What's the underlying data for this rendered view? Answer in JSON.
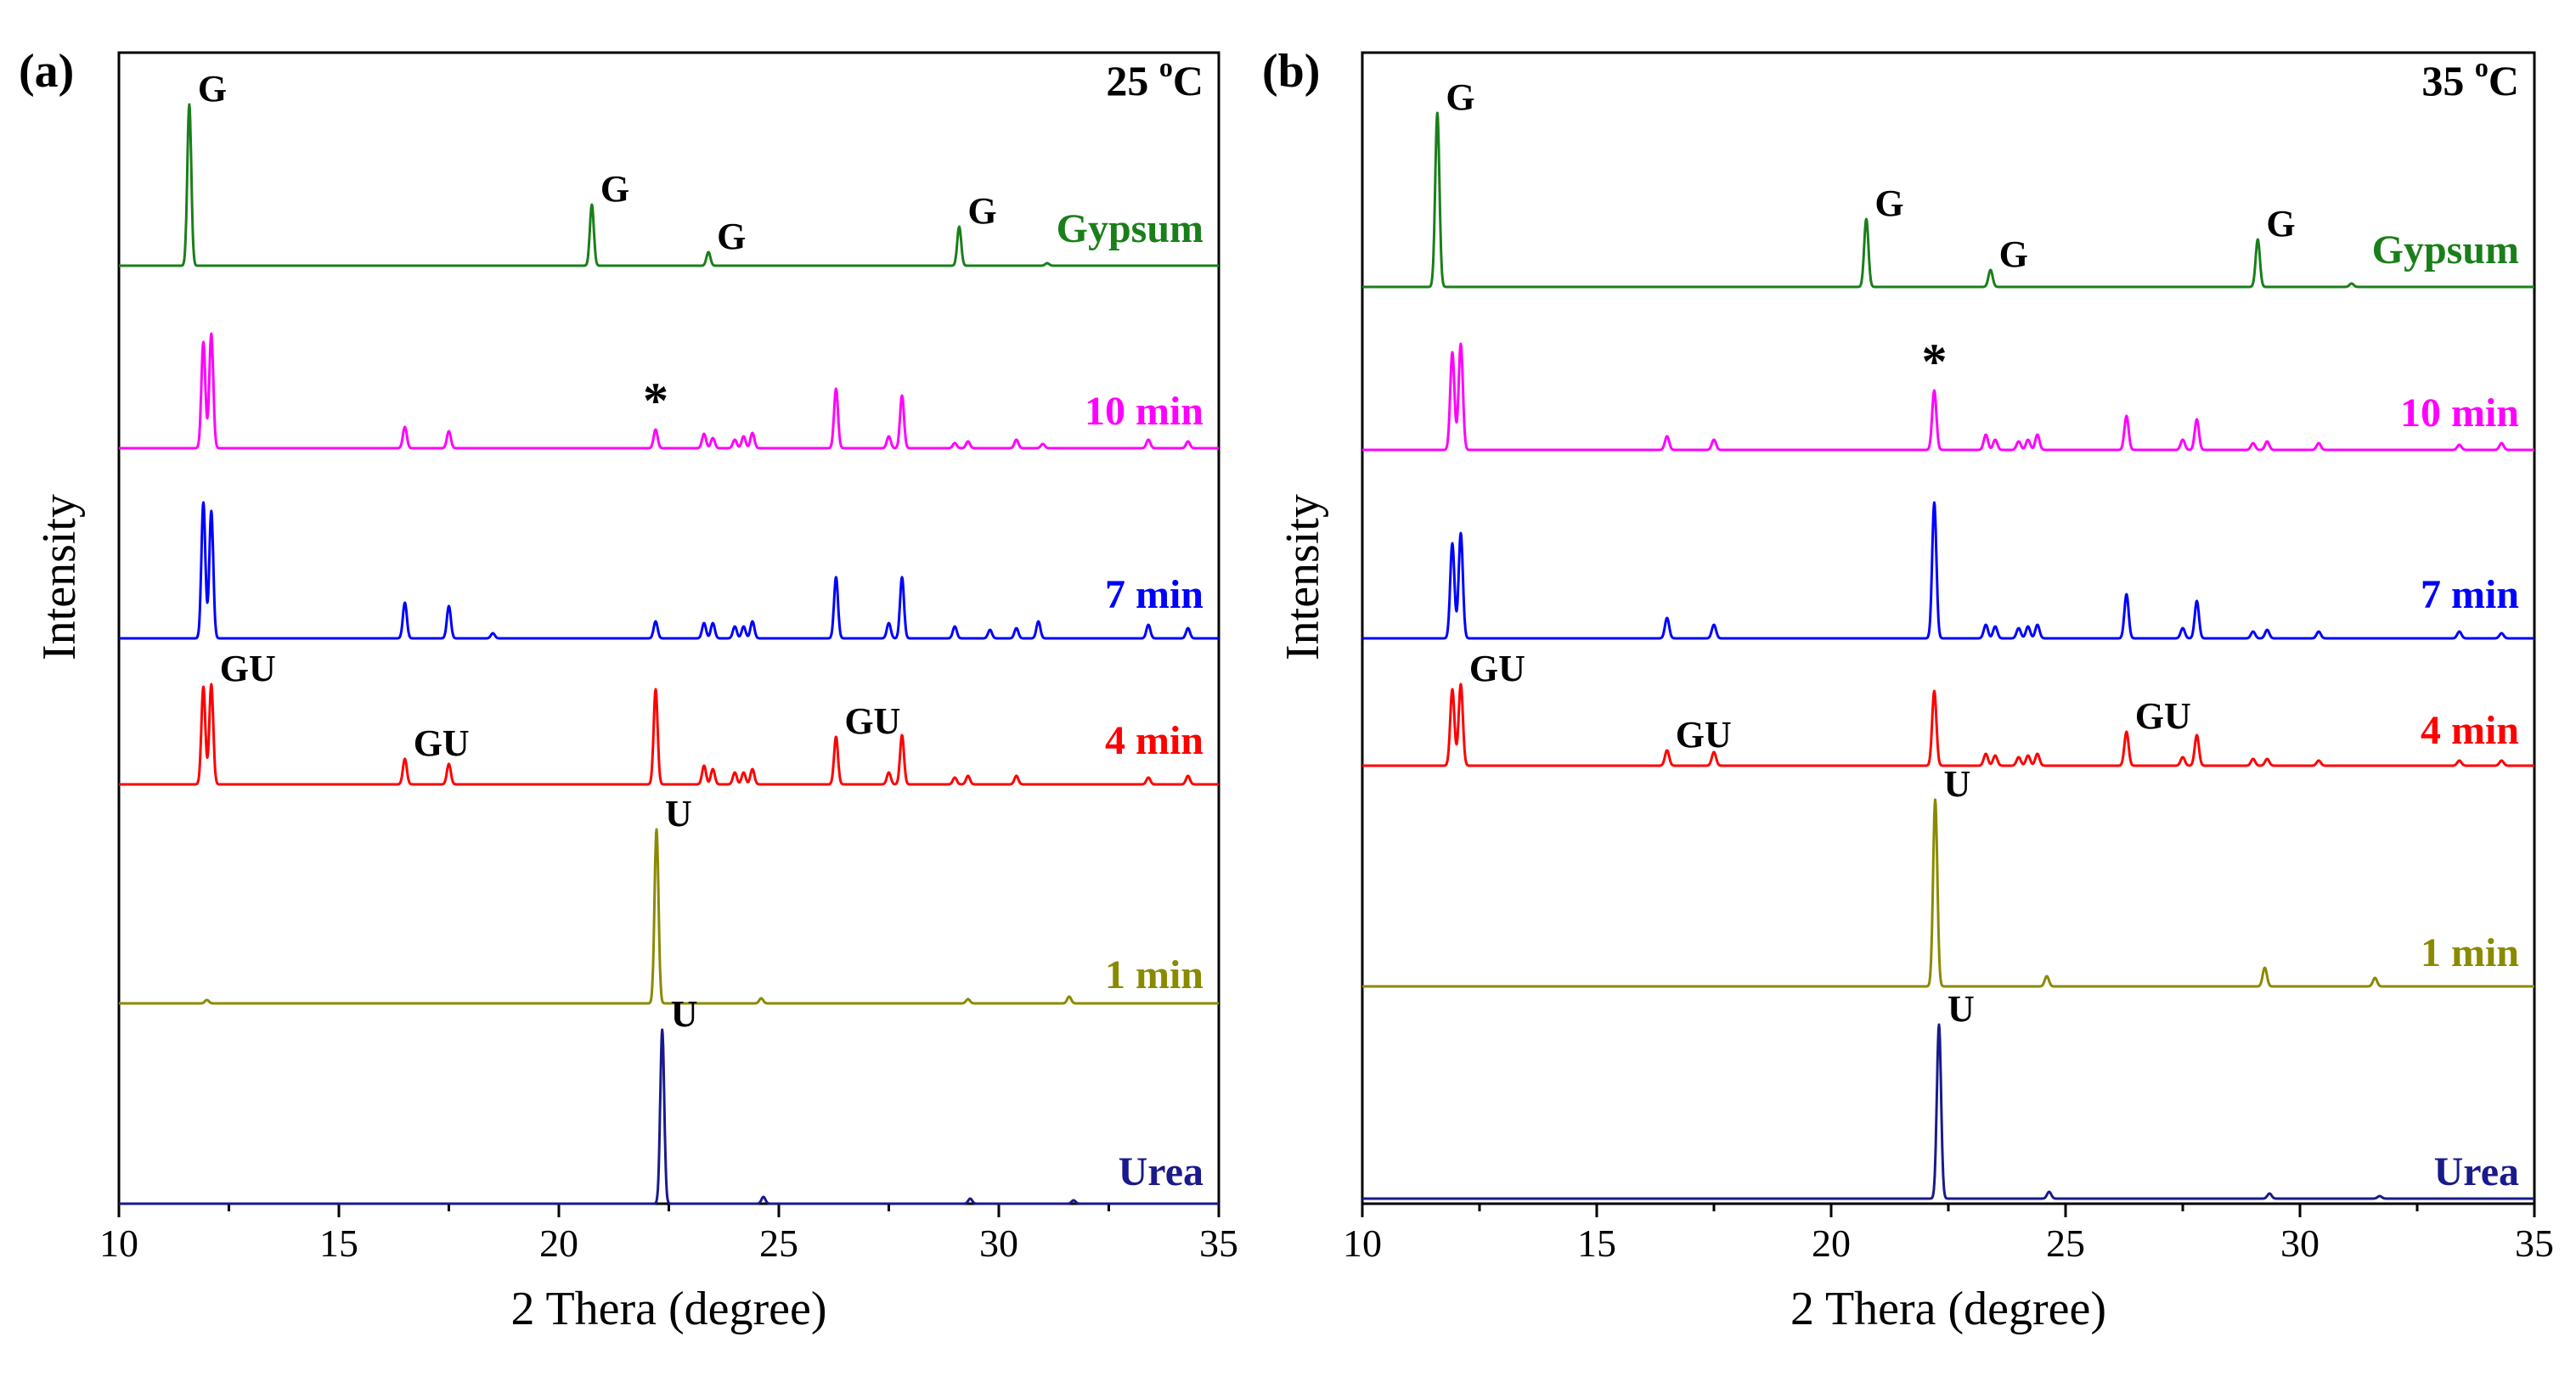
{
  "figure": {
    "shared_x_ticks": [
      "10",
      "15",
      "20",
      "25",
      "30",
      "35"
    ]
  },
  "chart_data": [
    {
      "type": "line",
      "panel_label": "(a)",
      "temperature": "25 ",
      "temp_sup": "o",
      "temp_unit": "C",
      "xlabel": "2 Thera (degree)",
      "ylabel": "Intensity",
      "xlim": [
        10,
        35
      ],
      "xticks": [
        10,
        15,
        20,
        25,
        30,
        35
      ],
      "series": [
        {
          "name": "Gypsum",
          "label": "Gypsum",
          "color": "#1a7f1a",
          "peaks": [
            [
              11.6,
              190
            ],
            [
              20.75,
              72
            ],
            [
              23.4,
              16
            ],
            [
              29.1,
              46
            ],
            [
              31.1,
              3
            ]
          ]
        },
        {
          "name": "10 min",
          "label": "10 min",
          "color": "#ff00ff",
          "peaks": [
            [
              11.92,
              125
            ],
            [
              12.1,
              135
            ],
            [
              16.5,
              25
            ],
            [
              17.5,
              20
            ],
            [
              22.2,
              22
            ],
            [
              23.3,
              17
            ],
            [
              23.5,
              12
            ],
            [
              24.0,
              10
            ],
            [
              24.2,
              14
            ],
            [
              24.4,
              18
            ],
            [
              26.3,
              70
            ],
            [
              27.5,
              14
            ],
            [
              27.8,
              62
            ],
            [
              29.0,
              6
            ],
            [
              29.3,
              8
            ],
            [
              30.4,
              10
            ],
            [
              31.0,
              5
            ],
            [
              33.4,
              10
            ],
            [
              34.3,
              8
            ]
          ]
        },
        {
          "name": "7 min",
          "label": "7 min",
          "color": "#0000ff",
          "peaks": [
            [
              11.92,
              160
            ],
            [
              12.1,
              150
            ],
            [
              16.5,
              42
            ],
            [
              17.5,
              38
            ],
            [
              18.5,
              6
            ],
            [
              22.2,
              20
            ],
            [
              23.3,
              18
            ],
            [
              23.5,
              18
            ],
            [
              24.0,
              14
            ],
            [
              24.2,
              14
            ],
            [
              24.4,
              20
            ],
            [
              26.3,
              72
            ],
            [
              27.5,
              18
            ],
            [
              27.8,
              72
            ],
            [
              29.0,
              14
            ],
            [
              29.8,
              10
            ],
            [
              30.4,
              12
            ],
            [
              30.9,
              20
            ],
            [
              33.4,
              16
            ],
            [
              34.3,
              12
            ]
          ]
        },
        {
          "name": "4 min",
          "label": "4 min",
          "color": "#ff0000",
          "peaks": [
            [
              11.92,
              115
            ],
            [
              12.1,
              118
            ],
            [
              16.5,
              30
            ],
            [
              17.5,
              24
            ],
            [
              22.2,
              112
            ],
            [
              23.3,
              22
            ],
            [
              23.5,
              18
            ],
            [
              24.0,
              14
            ],
            [
              24.2,
              14
            ],
            [
              24.4,
              18
            ],
            [
              26.3,
              56
            ],
            [
              27.5,
              14
            ],
            [
              27.8,
              58
            ],
            [
              29.0,
              8
            ],
            [
              29.3,
              10
            ],
            [
              30.4,
              10
            ],
            [
              33.4,
              8
            ],
            [
              34.3,
              10
            ]
          ]
        },
        {
          "name": "1 min",
          "label": "1 min",
          "color": "#8a8a00",
          "peaks": [
            [
              12.0,
              4
            ],
            [
              22.22,
              205
            ],
            [
              24.6,
              6
            ],
            [
              29.3,
              5
            ],
            [
              31.6,
              8
            ]
          ]
        },
        {
          "name": "Urea",
          "label": "Urea",
          "color": "#1a1a8c",
          "peaks": [
            [
              22.35,
              205
            ],
            [
              24.65,
              8
            ],
            [
              29.35,
              6
            ],
            [
              31.7,
              4
            ]
          ]
        }
      ],
      "annotations": [
        {
          "text": "G",
          "series": "Gypsum",
          "x": 11.6
        },
        {
          "text": "G",
          "series": "Gypsum",
          "x": 20.75
        },
        {
          "text": "G",
          "series": "Gypsum",
          "x": 23.4
        },
        {
          "text": "G",
          "series": "Gypsum",
          "x": 29.1
        },
        {
          "text": "*",
          "series": "10 min",
          "x": 22.2
        },
        {
          "text": "GU",
          "series": "4 min",
          "x": 12.1
        },
        {
          "text": "GU",
          "series": "4 min",
          "x": 16.5
        },
        {
          "text": "GU",
          "series": "4 min",
          "x": 26.3
        },
        {
          "text": "U",
          "series": "1 min",
          "x": 22.22
        },
        {
          "text": "U",
          "series": "Urea",
          "x": 22.35
        }
      ]
    },
    {
      "type": "line",
      "panel_label": "(b)",
      "temperature": "35 ",
      "temp_sup": "o",
      "temp_unit": "C",
      "xlabel": "2 Thera (degree)",
      "ylabel": "Intensity",
      "xlim": [
        10,
        35
      ],
      "xticks": [
        10,
        15,
        20,
        25,
        30,
        35
      ],
      "series": [
        {
          "name": "Gypsum",
          "label": "Gypsum",
          "color": "#1a7f1a",
          "peaks": [
            [
              11.6,
              205
            ],
            [
              20.75,
              80
            ],
            [
              23.4,
              20
            ],
            [
              29.1,
              56
            ],
            [
              31.1,
              4
            ]
          ]
        },
        {
          "name": "10 min",
          "label": "10 min",
          "color": "#ff00ff",
          "peaks": [
            [
              11.92,
              115
            ],
            [
              12.1,
              125
            ],
            [
              16.5,
              16
            ],
            [
              17.5,
              12
            ],
            [
              22.2,
              70
            ],
            [
              23.3,
              18
            ],
            [
              23.5,
              12
            ],
            [
              24.0,
              10
            ],
            [
              24.2,
              12
            ],
            [
              24.4,
              18
            ],
            [
              26.3,
              40
            ],
            [
              27.5,
              12
            ],
            [
              27.8,
              36
            ],
            [
              29.0,
              8
            ],
            [
              29.3,
              10
            ],
            [
              30.4,
              8
            ],
            [
              33.4,
              6
            ],
            [
              34.3,
              8
            ]
          ]
        },
        {
          "name": "7 min",
          "label": "7 min",
          "color": "#0000ff",
          "peaks": [
            [
              11.92,
              112
            ],
            [
              12.1,
              124
            ],
            [
              16.5,
              24
            ],
            [
              17.5,
              16
            ],
            [
              22.2,
              160
            ],
            [
              23.3,
              16
            ],
            [
              23.5,
              14
            ],
            [
              24.0,
              12
            ],
            [
              24.2,
              14
            ],
            [
              24.4,
              16
            ],
            [
              26.3,
              52
            ],
            [
              27.5,
              12
            ],
            [
              27.8,
              44
            ],
            [
              29.0,
              8
            ],
            [
              29.3,
              10
            ],
            [
              30.4,
              8
            ],
            [
              33.4,
              8
            ],
            [
              34.3,
              6
            ]
          ]
        },
        {
          "name": "4 min",
          "label": "4 min",
          "color": "#ff0000",
          "peaks": [
            [
              11.92,
              90
            ],
            [
              12.1,
              96
            ],
            [
              16.5,
              18
            ],
            [
              17.5,
              16
            ],
            [
              22.2,
              88
            ],
            [
              23.3,
              14
            ],
            [
              23.5,
              12
            ],
            [
              24.0,
              10
            ],
            [
              24.2,
              12
            ],
            [
              24.4,
              14
            ],
            [
              26.3,
              40
            ],
            [
              27.5,
              10
            ],
            [
              27.8,
              36
            ],
            [
              29.0,
              8
            ],
            [
              29.3,
              8
            ],
            [
              30.4,
              6
            ],
            [
              33.4,
              6
            ],
            [
              34.3,
              6
            ]
          ]
        },
        {
          "name": "1 min",
          "label": "1 min",
          "color": "#8a8a00",
          "peaks": [
            [
              22.22,
              220
            ],
            [
              24.6,
              12
            ],
            [
              29.25,
              22
            ],
            [
              31.6,
              10
            ]
          ]
        },
        {
          "name": "Urea",
          "label": "Urea",
          "color": "#1a1a8c",
          "peaks": [
            [
              22.3,
              205
            ],
            [
              24.65,
              8
            ],
            [
              29.35,
              6
            ],
            [
              31.7,
              3
            ]
          ]
        }
      ],
      "annotations": [
        {
          "text": "G",
          "series": "Gypsum",
          "x": 11.6
        },
        {
          "text": "G",
          "series": "Gypsum",
          "x": 20.75
        },
        {
          "text": "G",
          "series": "Gypsum",
          "x": 23.4
        },
        {
          "text": "G",
          "series": "Gypsum",
          "x": 29.1
        },
        {
          "text": "*",
          "series": "10 min",
          "x": 22.2
        },
        {
          "text": "GU",
          "series": "4 min",
          "x": 12.1
        },
        {
          "text": "GU",
          "series": "4 min",
          "x": 16.5
        },
        {
          "text": "GU",
          "series": "4 min",
          "x": 26.3
        },
        {
          "text": "U",
          "series": "1 min",
          "x": 22.22
        },
        {
          "text": "U",
          "series": "Urea",
          "x": 22.3
        }
      ]
    }
  ]
}
